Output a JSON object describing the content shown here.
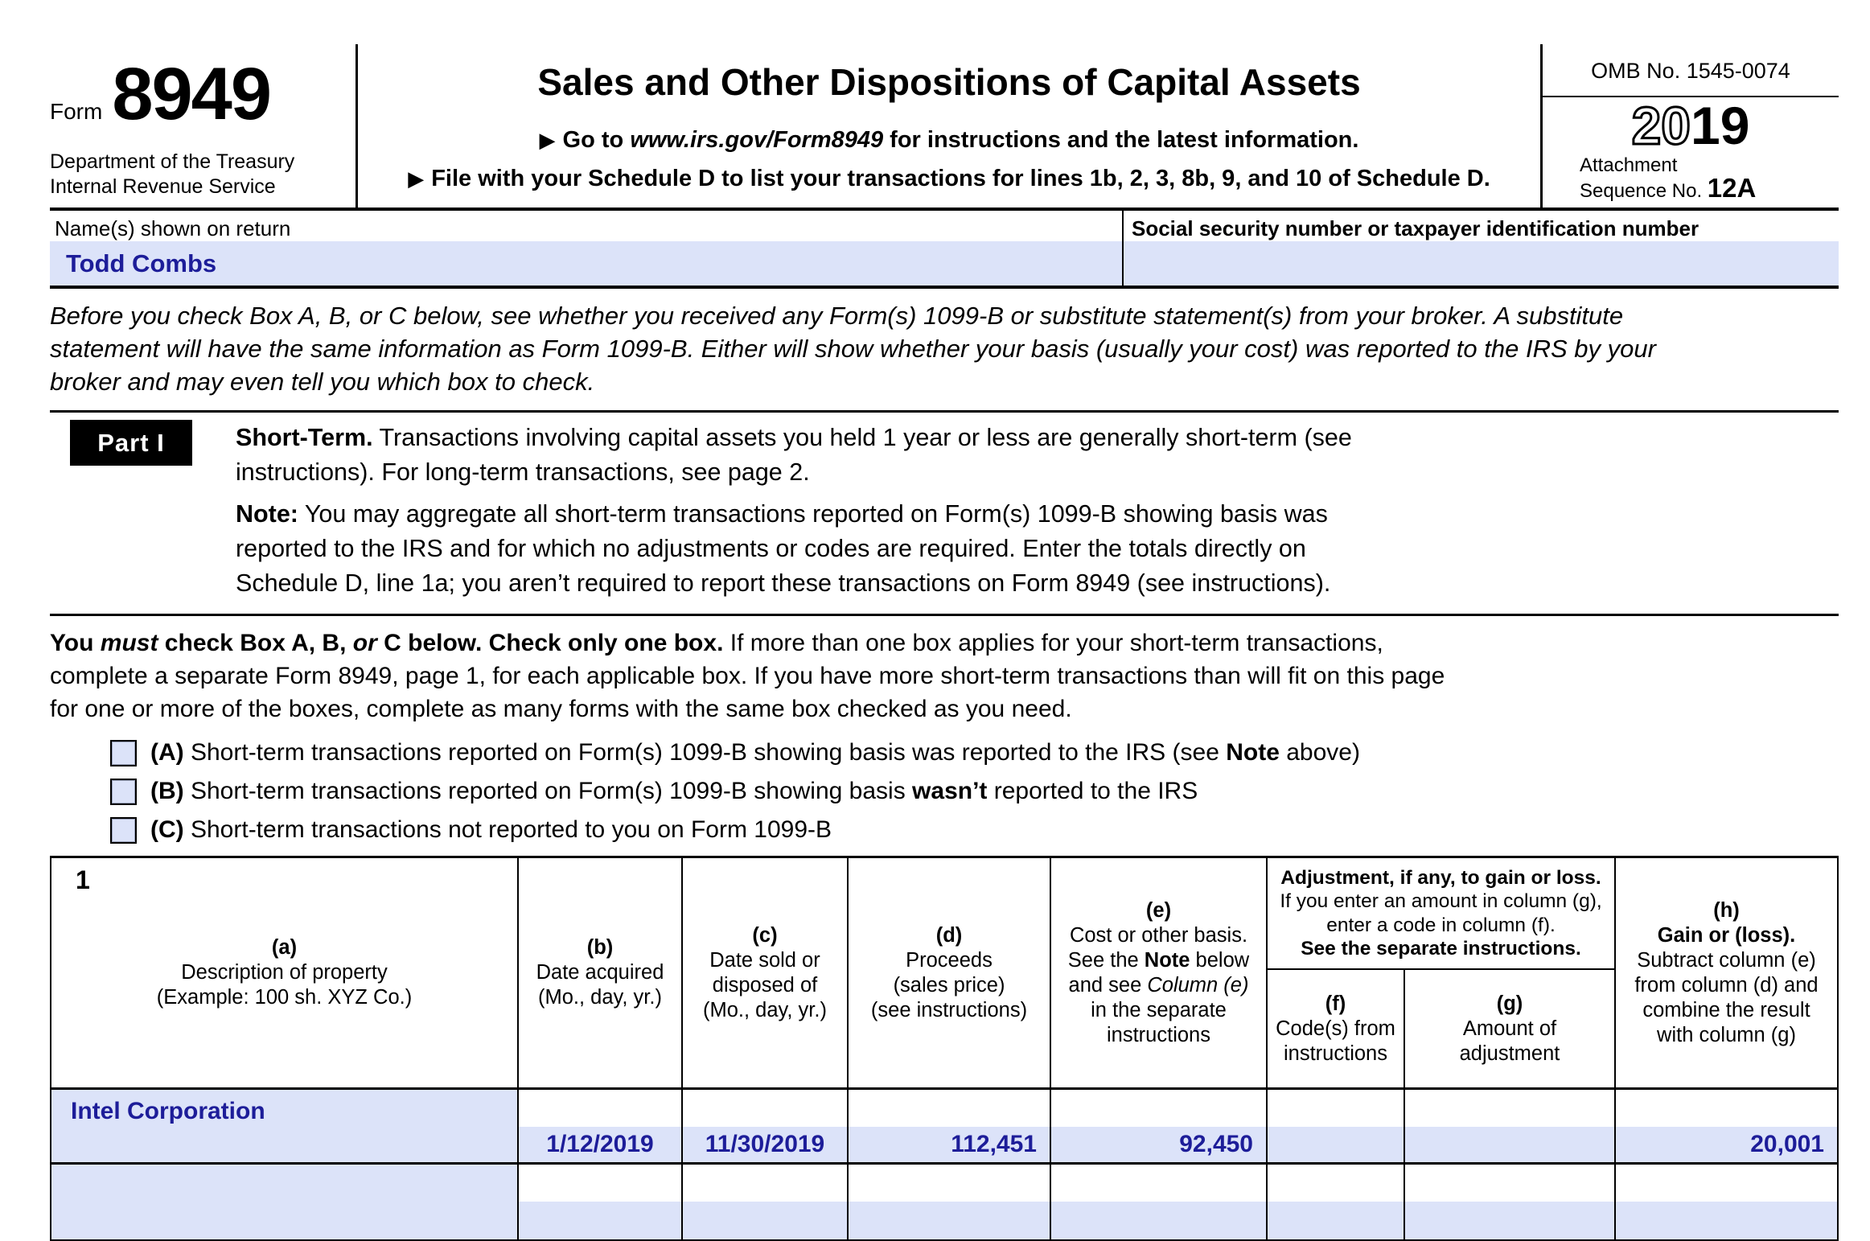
{
  "colors": {
    "field_blue": "#dce3f9",
    "value_navy": "#1d1d99"
  },
  "header": {
    "form_word": "Form",
    "form_number": "8949",
    "dept_line1": "Department of the Treasury",
    "dept_line2": "Internal Revenue Service",
    "title": "Sales and Other Dispositions of Capital Assets",
    "arrow": "▶",
    "goto_pre": "Go to ",
    "goto_url": "www.irs.gov/Form8949",
    "goto_post": " for instructions and the latest information.",
    "file_text": "File with your Schedule D to list your transactions for lines 1b, 2, 3, 8b, 9, and 10 of Schedule D.",
    "omb": "OMB No. 1545-0074",
    "year_outline": "20",
    "year_solid": "19",
    "attachment": "Attachment",
    "sequence": "Sequence No.",
    "sequence_no": "12A"
  },
  "identity": {
    "name_label": "Name(s) shown on return",
    "name_value": "Todd Combs",
    "ssn_label": "Social security number or taxpayer identification number",
    "ssn_value": ""
  },
  "intro": {
    "l1": "Before you check Box A, B, or C below, see whether you received any Form(s) 1099-B or substitute statement(s) from your broker. A substitute",
    "l2": "statement will have the same information as Form 1099-B. Either will show whether your basis (usually your cost) was reported to the IRS by your",
    "l3": "broker and may even tell you which box to check."
  },
  "part1": {
    "badge": "Part I",
    "h_bold": "Short-Term.",
    "h_l1": " Transactions involving capital assets you held 1 year or less are generally short-term (see",
    "h_l2": "instructions). For long-term transactions, see page 2.",
    "n_bold": "Note:",
    "n_l1": " You may aggregate all short-term transactions reported on Form(s) 1099-B showing basis was",
    "n_l2": "reported to the IRS and for which no adjustments or codes are required. Enter the totals directly on",
    "n_l3": "Schedule D, line 1a; you aren’t required to report these transactions on Form 8949 (see instructions)."
  },
  "must_check": {
    "you": "You ",
    "must": "must",
    "mid": " check Box A, B, ",
    "or": "or",
    "bold_end": " C below. Check only one box.",
    "l1_rest": " If more than one box applies for your short-term transactions,",
    "l2": "complete a separate Form 8949, page 1, for each applicable box. If you have more short-term transactions than will fit on this page",
    "l3": "for one or more of the boxes, complete as many forms with the same box checked as you need."
  },
  "checkboxes": [
    {
      "letter": "(A)",
      "pre": " Short-term transactions reported on Form(s) 1099-B showing basis was reported to the IRS (see ",
      "bold": "Note",
      "post": " above)"
    },
    {
      "letter": "(B)",
      "pre": " Short-term transactions reported on Form(s) 1099-B showing basis ",
      "bold": "wasn’t",
      "post": " reported to the IRS"
    },
    {
      "letter": "(C)",
      "pre": " Short-term transactions not reported to you on Form 1099-B",
      "bold": "",
      "post": ""
    }
  ],
  "table": {
    "row_number": "1",
    "col_a": {
      "tag": "(a)",
      "l1": "Description of property",
      "l2": "(Example: 100 sh. XYZ Co.)"
    },
    "col_b": {
      "tag": "(b)",
      "l1": "Date acquired",
      "l2": "(Mo., day, yr.)"
    },
    "col_c": {
      "tag": "(c)",
      "l1": "Date sold or",
      "l2": "disposed of",
      "l3": "(Mo., day, yr.)"
    },
    "col_d": {
      "tag": "(d)",
      "l1": "Proceeds",
      "l2": "(sales price)",
      "l3": "(see instructions)"
    },
    "col_e": {
      "tag": "(e)",
      "l1": "Cost or other basis.",
      "l2_pre": "See the ",
      "l2_bold": "Note",
      "l2_post": " below",
      "l3_pre": "and see ",
      "l3_italic": "Column (e)",
      "l4": "in the separate",
      "l5": "instructions"
    },
    "adj": {
      "bold1": "Adjustment, if any, to gain or loss.",
      "l2": "If you enter an amount in column (g),",
      "l3": "enter a code in column (f).",
      "bold4": "See the separate instructions."
    },
    "col_f": {
      "tag": "(f)",
      "l1": "Code(s) from",
      "l2": "instructions"
    },
    "col_g": {
      "tag": "(g)",
      "l1": "Amount of",
      "l2": "adjustment"
    },
    "col_h": {
      "tag": "(h)",
      "bold1": "Gain or (loss).",
      "l2": "Subtract column (e)",
      "l3": "from column (d) and",
      "l4": "combine the result",
      "l5": "with column (g)"
    },
    "rows": [
      {
        "description": "Intel Corporation",
        "date_acquired": "1/12/2019",
        "date_sold": "11/30/2019",
        "proceeds": "112,451",
        "cost": "92,450",
        "code": "",
        "adjustment": "",
        "gain": "20,001"
      },
      {
        "description": "",
        "date_acquired": "",
        "date_sold": "",
        "proceeds": "",
        "cost": "",
        "code": "",
        "adjustment": "",
        "gain": ""
      }
    ]
  }
}
